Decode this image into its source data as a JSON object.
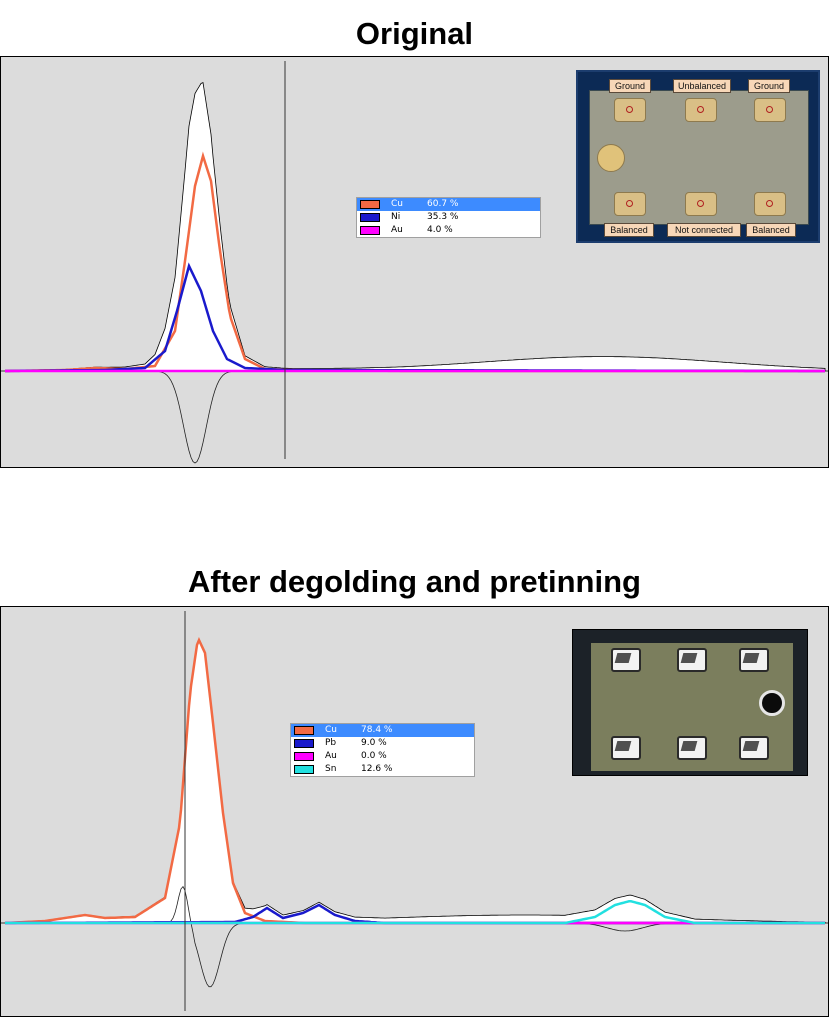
{
  "chart_data": [
    {
      "type": "line",
      "title": "Original",
      "series": [
        {
          "name": "Cu",
          "color": "#f26a44",
          "x": [
            0,
            60,
            90,
            120,
            150,
            170,
            180,
            190,
            198,
            206,
            215,
            225,
            240,
            260,
            290,
            400,
            600,
            820
          ],
          "values": [
            0,
            1,
            3,
            2,
            5,
            40,
            110,
            185,
            215,
            190,
            120,
            55,
            12,
            2,
            1,
            0,
            0,
            0
          ]
        },
        {
          "name": "Ni",
          "color": "#1a1acc",
          "x": [
            0,
            100,
            140,
            160,
            172,
            184,
            196,
            208,
            222,
            240,
            280,
            820
          ],
          "values": [
            0,
            1,
            3,
            20,
            60,
            105,
            80,
            40,
            12,
            3,
            1,
            0
          ]
        },
        {
          "name": "Au",
          "color": "#ff00ff",
          "x": [
            0,
            820
          ],
          "values": [
            0,
            0
          ]
        }
      ],
      "legend": [
        {
          "element": "Cu",
          "percent": "60.7 %",
          "color": "#f26a44",
          "selected": true
        },
        {
          "element": "Ni",
          "percent": "35.3 %",
          "color": "#1a1acc",
          "selected": false
        },
        {
          "element": "Au",
          "percent": "4.0 %",
          "color": "#ff00ff",
          "selected": false
        }
      ],
      "photo_labels": {
        "top": [
          "Ground",
          "Unbalanced",
          "Ground"
        ],
        "bottom": [
          "Balanced",
          "Not connected",
          "Balanced"
        ]
      }
    },
    {
      "type": "line",
      "title": "After degolding and pretinning",
      "series": [
        {
          "name": "Cu",
          "color": "#f26a44",
          "x": [
            0,
            40,
            80,
            100,
            130,
            160,
            175,
            185,
            193,
            200,
            208,
            218,
            228,
            240,
            260,
            300,
            820
          ],
          "values": [
            0,
            2,
            8,
            5,
            6,
            25,
            100,
            230,
            285,
            270,
            200,
            110,
            40,
            10,
            2,
            0,
            0
          ]
        },
        {
          "name": "Pb",
          "color": "#1a1acc",
          "x": [
            0,
            230,
            248,
            262,
            278,
            298,
            314,
            330,
            350,
            380,
            820
          ],
          "values": [
            0,
            1,
            6,
            15,
            5,
            10,
            18,
            8,
            2,
            0,
            0
          ]
        },
        {
          "name": "Au",
          "color": "#ff00ff",
          "x": [
            0,
            820
          ],
          "values": [
            0,
            0
          ]
        },
        {
          "name": "Sn",
          "color": "#22e0e0",
          "x": [
            0,
            560,
            590,
            610,
            625,
            640,
            660,
            690,
            820
          ],
          "values": [
            0,
            0,
            6,
            18,
            22,
            18,
            6,
            0,
            0
          ]
        }
      ],
      "legend": [
        {
          "element": "Cu",
          "percent": "78.4 %",
          "color": "#f26a44",
          "selected": true
        },
        {
          "element": "Pb",
          "percent": "9.0 %",
          "color": "#1a1acc",
          "selected": false
        },
        {
          "element": "Au",
          "percent": "0.0 %",
          "color": "#ff00ff",
          "selected": false
        },
        {
          "element": "Sn",
          "percent": "12.6 %",
          "color": "#22e0e0",
          "selected": false
        }
      ]
    }
  ]
}
